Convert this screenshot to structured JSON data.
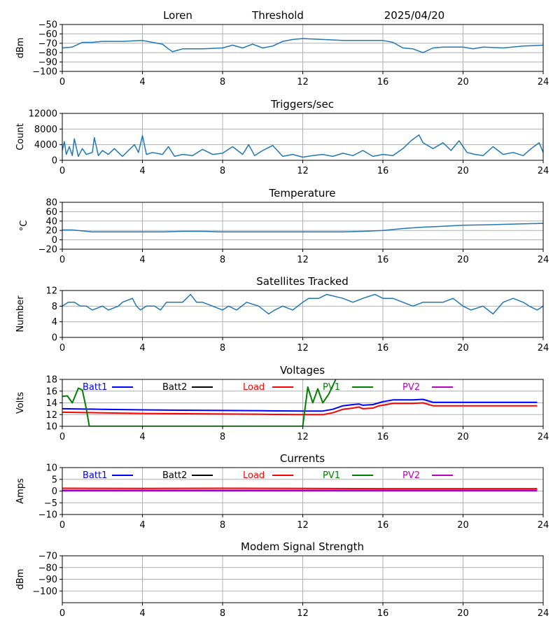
{
  "header": {
    "station": "Loren",
    "mode": "Threshold",
    "date": "2025/04/20"
  },
  "colors": {
    "series_default": "#1f77b4",
    "grid": "#b0b0b0",
    "batt1": "#0000ff",
    "batt2": "#000000",
    "load": "#ff0000",
    "pv1": "#008000",
    "pv2": "#bf00bf"
  },
  "chart_data": [
    {
      "id": "signal",
      "type": "line",
      "title": "",
      "ylabel": "dBm",
      "xlim": [
        0,
        24
      ],
      "xticks": [
        0,
        4,
        8,
        12,
        16,
        20,
        24
      ],
      "ylim": [
        -100,
        -50
      ],
      "yticks": [
        -100,
        -90,
        -80,
        -70,
        -60,
        -50
      ],
      "grid": true,
      "series": [
        {
          "x": [
            0,
            0.5,
            1,
            1.5,
            2,
            3,
            4,
            4.5,
            5,
            5.3,
            5.5,
            6,
            7,
            8,
            8.5,
            9,
            9.5,
            10,
            10.5,
            11,
            11.5,
            12,
            13,
            14,
            15,
            16,
            16.5,
            17,
            17.5,
            18,
            18.5,
            19,
            20,
            20.5,
            21,
            22,
            23,
            24
          ],
          "y": [
            -75,
            -74,
            -69,
            -69,
            -68,
            -68,
            -67,
            -69,
            -71,
            -76,
            -79,
            -76,
            -76,
            -75,
            -72,
            -75,
            -71,
            -75,
            -73,
            -68,
            -66,
            -65,
            -66,
            -67,
            -67,
            -67,
            -69,
            -75,
            -76,
            -80,
            -75,
            -74,
            -74,
            -76,
            -74,
            -75,
            -73,
            -72
          ]
        }
      ]
    },
    {
      "id": "triggers",
      "type": "line",
      "title": "Triggers/sec",
      "ylabel": "Count",
      "xlim": [
        0,
        24
      ],
      "xticks": [
        0,
        4,
        8,
        12,
        16,
        20,
        24
      ],
      "ylim": [
        0,
        12000
      ],
      "yticks": [
        0,
        4000,
        8000,
        12000
      ],
      "grid": true,
      "series": [
        {
          "x": [
            0,
            0.1,
            0.2,
            0.35,
            0.5,
            0.6,
            0.8,
            1.0,
            1.2,
            1.5,
            1.6,
            1.8,
            2.0,
            2.3,
            2.6,
            3.0,
            3.3,
            3.6,
            3.8,
            4.0,
            4.2,
            4.5,
            5.0,
            5.3,
            5.6,
            6.0,
            6.5,
            7.0,
            7.5,
            8.0,
            8.5,
            9.0,
            9.3,
            9.6,
            10.0,
            10.5,
            11.0,
            11.5,
            12.0,
            12.5,
            13.0,
            13.5,
            14.0,
            14.5,
            15.0,
            15.5,
            16.0,
            16.5,
            17.0,
            17.4,
            17.8,
            18.0,
            18.5,
            19.0,
            19.4,
            19.8,
            20.2,
            20.6,
            21.0,
            21.5,
            22.0,
            22.5,
            23.0,
            23.4,
            23.8,
            24
          ],
          "y": [
            2500,
            4800,
            1500,
            3500,
            1200,
            5500,
            1000,
            3000,
            1500,
            2000,
            5800,
            1200,
            2500,
            1500,
            3000,
            1000,
            2500,
            4000,
            2000,
            6300,
            1500,
            2000,
            1500,
            3500,
            1000,
            1500,
            1200,
            2800,
            1500,
            1800,
            3500,
            1500,
            4000,
            1200,
            2500,
            3800,
            1000,
            1500,
            800,
            1200,
            1500,
            1000,
            1800,
            1200,
            2500,
            1000,
            1500,
            1200,
            3000,
            5000,
            6500,
            4500,
            3000,
            4500,
            2500,
            5000,
            2000,
            1500,
            1200,
            3500,
            1500,
            2000,
            1200,
            3000,
            4500,
            2000
          ]
        }
      ]
    },
    {
      "id": "temperature",
      "type": "line",
      "title": "Temperature",
      "ylabel": "°C",
      "xlim": [
        0,
        24
      ],
      "xticks": [
        0,
        4,
        8,
        12,
        16,
        20,
        24
      ],
      "ylim": [
        -20,
        80
      ],
      "yticks": [
        -20,
        0,
        20,
        40,
        60,
        80
      ],
      "grid": true,
      "series": [
        {
          "x": [
            0,
            0.5,
            1,
            1.5,
            2,
            3,
            4,
            5,
            6,
            7,
            8,
            9,
            10,
            11,
            12,
            13,
            14,
            15,
            16,
            17,
            18,
            19,
            20,
            21,
            22,
            23,
            24
          ],
          "y": [
            21,
            21,
            19,
            17,
            17,
            17,
            17,
            17,
            18,
            18,
            17,
            17,
            17,
            17,
            17,
            17,
            17,
            18,
            20,
            24,
            27,
            29,
            31,
            32,
            33,
            34,
            35
          ]
        }
      ]
    },
    {
      "id": "satellites",
      "type": "line",
      "title": "Satellites Tracked",
      "ylabel": "Number",
      "xlim": [
        0,
        24
      ],
      "xticks": [
        0,
        4,
        8,
        12,
        16,
        20,
        24
      ],
      "ylim": [
        0,
        12
      ],
      "yticks": [
        0,
        4,
        8,
        12
      ],
      "grid": true,
      "series": [
        {
          "x": [
            0,
            0.3,
            0.6,
            0.9,
            1.2,
            1.5,
            2.0,
            2.3,
            2.8,
            3.0,
            3.5,
            3.7,
            3.9,
            4.2,
            4.6,
            4.9,
            5.2,
            6.0,
            6.4,
            6.7,
            7.0,
            7.5,
            8.0,
            8.3,
            8.7,
            9.2,
            9.8,
            10.3,
            10.6,
            11.0,
            11.5,
            12.0,
            12.3,
            12.8,
            13.2,
            14.0,
            14.5,
            15.0,
            15.6,
            16.0,
            16.5,
            17.0,
            17.5,
            18.0,
            18.5,
            19.0,
            19.5,
            20.0,
            20.4,
            21.0,
            21.5,
            22.0,
            22.5,
            23.0,
            23.3,
            23.7,
            24
          ],
          "y": [
            8,
            9,
            9,
            8,
            8,
            7,
            8,
            7,
            8,
            9,
            10,
            8,
            7,
            8,
            8,
            7,
            9,
            9,
            11,
            9,
            9,
            8,
            7,
            8,
            7,
            9,
            8,
            6,
            7,
            8,
            7,
            9,
            10,
            10,
            11,
            10,
            9,
            10,
            11,
            10,
            10,
            9,
            8,
            9,
            9,
            9,
            10,
            8,
            7,
            8,
            6,
            9,
            10,
            9,
            8,
            7,
            8
          ]
        }
      ]
    },
    {
      "id": "voltages",
      "type": "line",
      "title": "Voltages",
      "ylabel": "Volts",
      "xlim": [
        0,
        24
      ],
      "xticks": [
        0,
        4,
        8,
        12,
        16,
        20,
        24
      ],
      "ylim": [
        10,
        18
      ],
      "yticks": [
        10,
        12,
        14,
        16,
        18
      ],
      "grid": true,
      "legend": {
        "placement": "top",
        "entries": [
          "Batt1",
          "Batt2",
          "Load",
          "PV1",
          "PV2"
        ]
      },
      "series": [
        {
          "name": "Batt1",
          "color": "#0000ff",
          "x": [
            0,
            2,
            4,
            6,
            8,
            10,
            12,
            13,
            13.5,
            14,
            14.5,
            14.8,
            15,
            15.5,
            15.8,
            16,
            16.5,
            17,
            17.5,
            18,
            18.5,
            20,
            22,
            23.7
          ],
          "y": [
            13.0,
            12.9,
            12.8,
            12.75,
            12.7,
            12.65,
            12.6,
            12.6,
            12.9,
            13.5,
            13.7,
            13.8,
            13.6,
            13.7,
            14.0,
            14.2,
            14.5,
            14.5,
            14.5,
            14.6,
            14.1,
            14.1,
            14.1,
            14.1
          ]
        },
        {
          "name": "Load",
          "color": "#ff0000",
          "x": [
            0,
            2,
            4,
            6,
            8,
            10,
            12,
            13,
            13.5,
            14,
            14.5,
            14.8,
            15,
            15.5,
            15.8,
            16,
            16.5,
            17,
            17.5,
            18,
            18.5,
            20,
            22,
            23.7
          ],
          "y": [
            12.4,
            12.3,
            12.2,
            12.15,
            12.1,
            12.05,
            12.0,
            12.0,
            12.3,
            12.9,
            13.1,
            13.3,
            13.0,
            13.1,
            13.5,
            13.6,
            13.9,
            13.9,
            13.9,
            14.0,
            13.5,
            13.5,
            13.5,
            13.5
          ]
        },
        {
          "name": "PV1",
          "color": "#008000",
          "x": [
            0,
            0.25,
            0.5,
            0.8,
            1.0,
            1.2,
            1.35,
            12.0,
            12.25,
            12.5,
            12.75,
            13.0,
            13.3,
            13.65
          ],
          "y": [
            15.1,
            15.2,
            14.0,
            16.5,
            16.2,
            13.0,
            10.0,
            10.0,
            16.7,
            14.0,
            16.4,
            14.0,
            15.5,
            18.0
          ]
        }
      ]
    },
    {
      "id": "currents",
      "type": "line",
      "title": "Currents",
      "ylabel": "Amps",
      "xlim": [
        0,
        24
      ],
      "xticks": [
        0,
        4,
        8,
        12,
        16,
        20,
        24
      ],
      "ylim": [
        -10,
        10
      ],
      "yticks": [
        -10,
        -5,
        0,
        5,
        10
      ],
      "grid": true,
      "legend": {
        "placement": "top",
        "entries": [
          "Batt1",
          "Batt2",
          "Load",
          "PV1",
          "PV2"
        ]
      },
      "series": [
        {
          "name": "Batt1",
          "color": "#0000ff",
          "x": [
            0,
            23.7
          ],
          "y": [
            0.3,
            0.3
          ]
        },
        {
          "name": "Load",
          "color": "#ff0000",
          "x": [
            0,
            4,
            8,
            12,
            16,
            20,
            23.7
          ],
          "y": [
            1.2,
            1.1,
            1.2,
            1.1,
            1.0,
            1.0,
            1.0
          ]
        },
        {
          "name": "PV2",
          "color": "#bf00bf",
          "x": [
            0,
            23.7
          ],
          "y": [
            0.1,
            0.1
          ]
        }
      ]
    },
    {
      "id": "modem",
      "type": "line",
      "title": "Modem Signal Strength",
      "ylabel": "dBm",
      "xlim": [
        0,
        24
      ],
      "xticks": [
        0,
        4,
        8,
        12,
        16,
        20,
        24
      ],
      "ylim": [
        -110,
        -70
      ],
      "yticks": [
        -100,
        -90,
        -80,
        -70
      ],
      "grid": true,
      "series": []
    }
  ]
}
